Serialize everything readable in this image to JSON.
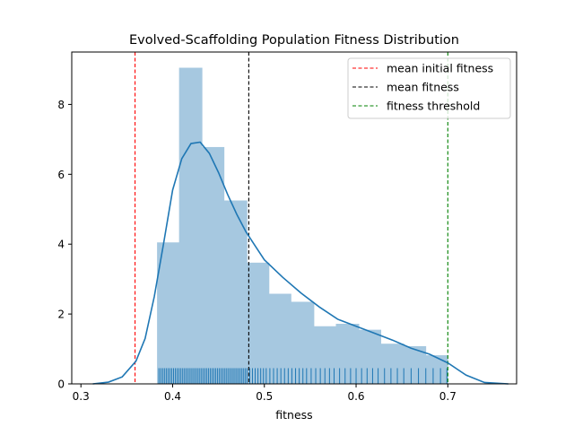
{
  "chart_data": {
    "type": "histogram",
    "title": "Evolved-Scaffolding Population Fitness Distribution",
    "xlabel": "fitness",
    "ylabel": "",
    "xlim": [
      0.29,
      0.775
    ],
    "ylim": [
      0,
      9.5
    ],
    "x_ticks": [
      0.3,
      0.4,
      0.5,
      0.6,
      0.7
    ],
    "y_ticks": [
      0,
      2,
      4,
      6,
      8
    ],
    "grid": false,
    "legend_position": "top-right",
    "histogram": {
      "color": "#a6c8e0",
      "bins": [
        {
          "x0": 0.383,
          "x1": 0.407,
          "value": 4.05
        },
        {
          "x0": 0.407,
          "x1": 0.432,
          "value": 9.05
        },
        {
          "x0": 0.432,
          "x1": 0.456,
          "value": 6.78
        },
        {
          "x0": 0.456,
          "x1": 0.481,
          "value": 5.25
        },
        {
          "x0": 0.481,
          "x1": 0.505,
          "value": 3.47
        },
        {
          "x0": 0.505,
          "x1": 0.529,
          "value": 2.58
        },
        {
          "x0": 0.529,
          "x1": 0.554,
          "value": 2.35
        },
        {
          "x0": 0.554,
          "x1": 0.578,
          "value": 1.65
        },
        {
          "x0": 0.578,
          "x1": 0.603,
          "value": 1.72
        },
        {
          "x0": 0.603,
          "x1": 0.627,
          "value": 1.55
        },
        {
          "x0": 0.627,
          "x1": 0.652,
          "value": 1.15
        },
        {
          "x0": 0.652,
          "x1": 0.676,
          "value": 1.08
        },
        {
          "x0": 0.676,
          "x1": 0.7,
          "value": 0.82
        }
      ]
    },
    "kde": {
      "color": "#1f77b4",
      "x": [
        0.313,
        0.33,
        0.345,
        0.36,
        0.37,
        0.38,
        0.39,
        0.4,
        0.41,
        0.42,
        0.43,
        0.44,
        0.45,
        0.46,
        0.47,
        0.48,
        0.49,
        0.5,
        0.52,
        0.54,
        0.56,
        0.58,
        0.6,
        0.62,
        0.64,
        0.66,
        0.68,
        0.7,
        0.72,
        0.74,
        0.766
      ],
      "y": [
        0.0,
        0.05,
        0.2,
        0.65,
        1.3,
        2.5,
        4.0,
        5.55,
        6.45,
        6.88,
        6.92,
        6.6,
        6.05,
        5.42,
        4.85,
        4.35,
        3.95,
        3.55,
        3.05,
        2.6,
        2.2,
        1.85,
        1.65,
        1.45,
        1.25,
        1.02,
        0.85,
        0.6,
        0.25,
        0.04,
        0.0
      ]
    },
    "rug": {
      "color": "#1f77b4",
      "height": 0.45,
      "x": [
        0.385,
        0.387,
        0.389,
        0.391,
        0.393,
        0.395,
        0.397,
        0.399,
        0.401,
        0.403,
        0.405,
        0.407,
        0.409,
        0.411,
        0.413,
        0.415,
        0.417,
        0.419,
        0.421,
        0.423,
        0.425,
        0.427,
        0.429,
        0.431,
        0.433,
        0.435,
        0.437,
        0.439,
        0.441,
        0.443,
        0.445,
        0.447,
        0.449,
        0.451,
        0.453,
        0.455,
        0.457,
        0.459,
        0.461,
        0.463,
        0.465,
        0.467,
        0.469,
        0.471,
        0.473,
        0.475,
        0.477,
        0.479,
        0.481,
        0.484,
        0.487,
        0.49,
        0.493,
        0.496,
        0.499,
        0.502,
        0.506,
        0.51,
        0.514,
        0.518,
        0.522,
        0.526,
        0.53,
        0.534,
        0.538,
        0.542,
        0.546,
        0.551,
        0.556,
        0.561,
        0.566,
        0.571,
        0.576,
        0.582,
        0.588,
        0.594,
        0.6,
        0.606,
        0.612,
        0.618,
        0.624,
        0.631,
        0.638,
        0.645,
        0.652,
        0.66,
        0.668,
        0.676,
        0.684,
        0.692,
        0.699
      ]
    },
    "lines": [
      {
        "label": "mean initial fitness",
        "x": 0.359,
        "color": "#ff0000"
      },
      {
        "label": "mean fitness",
        "x": 0.483,
        "color": "#000000"
      },
      {
        "label": "fitness threshold",
        "x": 0.7,
        "color": "#008000"
      }
    ]
  }
}
